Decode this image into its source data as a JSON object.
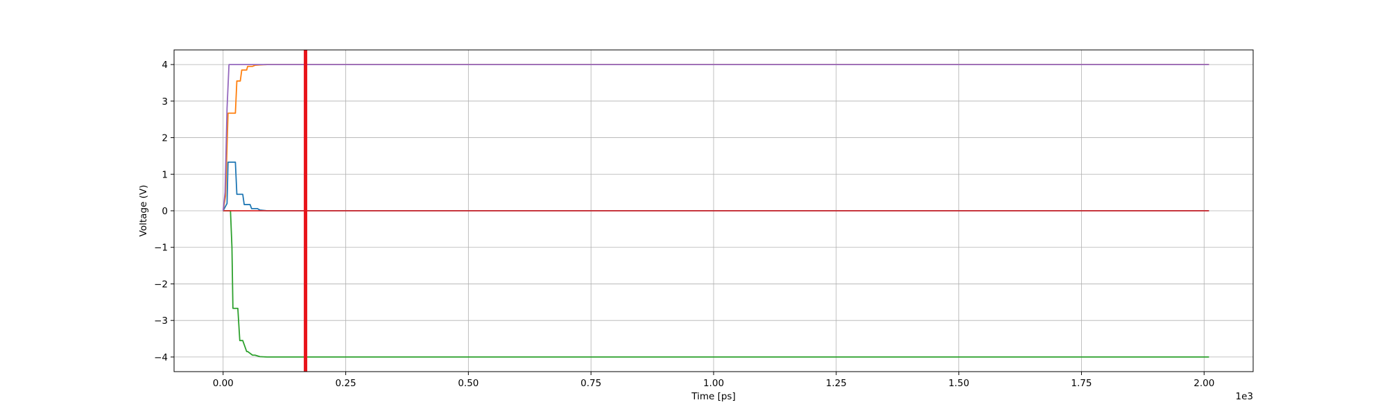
{
  "chart_data": {
    "type": "line",
    "title": "",
    "xlabel": "Time [ps]",
    "ylabel": "Voltage (V)",
    "x_offset_text": "1e3",
    "xlim": [
      -0.1,
      2.1
    ],
    "ylim": [
      -4.4,
      4.4
    ],
    "x_ticks": [
      0.0,
      0.25,
      0.5,
      0.75,
      1.0,
      1.25,
      1.5,
      1.75,
      2.0
    ],
    "x_tick_labels": [
      "0.00",
      "0.25",
      "0.50",
      "0.75",
      "1.00",
      "1.25",
      "1.50",
      "1.75",
      "2.00"
    ],
    "y_ticks": [
      -4,
      -3,
      -2,
      -1,
      0,
      1,
      2,
      3,
      4
    ],
    "y_tick_labels": [
      "−4",
      "−3",
      "−2",
      "−1",
      "0",
      "1",
      "2",
      "3",
      "4"
    ],
    "grid": true,
    "legend": "none",
    "marker_line": {
      "x": 0.168,
      "color": "#e8141b"
    },
    "series": [
      {
        "color": "#1f77b4",
        "x": [
          0.0,
          0.008,
          0.01,
          0.012,
          0.025,
          0.028,
          0.04,
          0.043,
          0.055,
          0.058,
          0.07,
          0.075,
          0.09,
          2.01
        ],
        "y": [
          0.0,
          0.2,
          1.33,
          1.33,
          1.33,
          0.45,
          0.45,
          0.17,
          0.17,
          0.06,
          0.06,
          0.02,
          0.0,
          0.0
        ]
      },
      {
        "color": "#ff7f0e",
        "x": [
          0.0,
          0.005,
          0.01,
          0.015,
          0.025,
          0.028,
          0.035,
          0.038,
          0.048,
          0.05,
          0.06,
          0.065,
          0.075,
          0.09,
          2.01
        ],
        "y": [
          0.0,
          0.4,
          2.67,
          2.67,
          2.67,
          3.55,
          3.55,
          3.85,
          3.85,
          3.95,
          3.95,
          3.98,
          3.99,
          4.0,
          4.0
        ]
      },
      {
        "color": "#2ca02c",
        "x": [
          0.0,
          0.015,
          0.018,
          0.02,
          0.022,
          0.03,
          0.034,
          0.04,
          0.048,
          0.05,
          0.06,
          0.065,
          0.075,
          0.09,
          2.01
        ],
        "y": [
          0.0,
          0.0,
          -1.0,
          -2.67,
          -2.67,
          -2.67,
          -3.55,
          -3.55,
          -3.85,
          -3.85,
          -3.95,
          -3.95,
          -3.99,
          -4.0,
          -4.0
        ]
      },
      {
        "color": "#d62728",
        "x": [
          0.0,
          2.01
        ],
        "y": [
          0.0,
          0.0
        ]
      },
      {
        "color": "#9467bd",
        "x": [
          0.0,
          0.004,
          0.008,
          0.012,
          2.01
        ],
        "y": [
          0.0,
          0.5,
          2.8,
          4.0,
          4.0
        ]
      }
    ]
  }
}
